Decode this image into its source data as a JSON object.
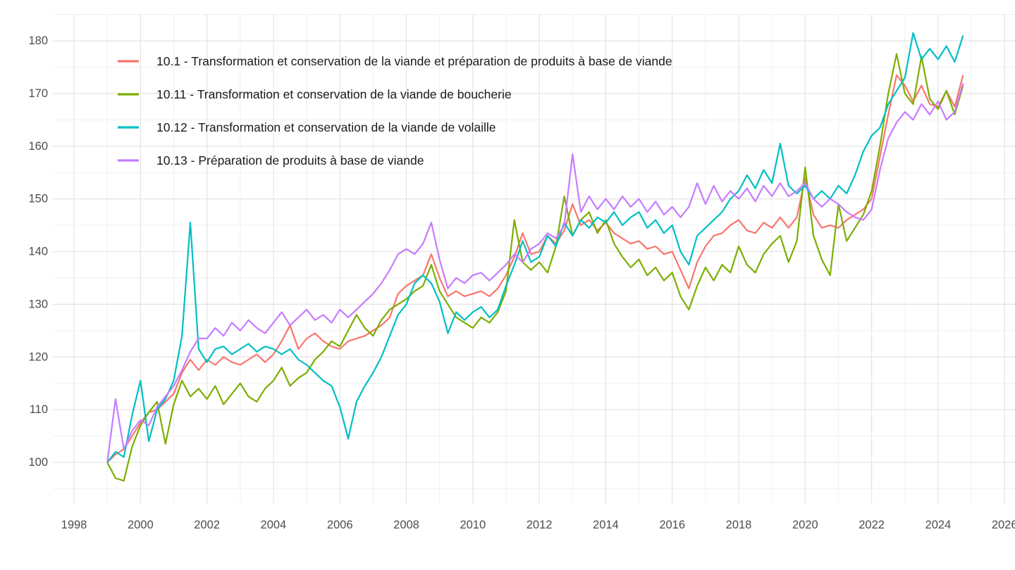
{
  "chart_data": {
    "type": "line",
    "title": "",
    "xlabel": "",
    "ylabel": "",
    "x_ticks": [
      1998,
      2000,
      2002,
      2004,
      2006,
      2008,
      2010,
      2012,
      2014,
      2016,
      2018,
      2020,
      2022,
      2024,
      2026
    ],
    "x_minor_ticks": [
      1999,
      2001,
      2003,
      2005,
      2007,
      2009,
      2011,
      2013,
      2015,
      2017,
      2019,
      2021,
      2023,
      2025
    ],
    "y_ticks": [
      100,
      110,
      120,
      130,
      140,
      150,
      160,
      170,
      180
    ],
    "y_minor_ticks": [
      95,
      105,
      115,
      125,
      135,
      145,
      155,
      165,
      175,
      185
    ],
    "x_domain": [
      1998,
      2026.3
    ],
    "y_domain": [
      92.5,
      183.8
    ],
    "grid": true,
    "legend_position": "top-left-inside",
    "x_start": 1999.0,
    "x_step": 0.25,
    "series": [
      {
        "code": "10.1",
        "name": "10.1 - Transformation et conservation de la viande et préparation de produits à base de viande",
        "color": "#F8766D",
        "values": [
          100,
          101.5,
          102.5,
          105,
          107.5,
          109.5,
          110,
          111.5,
          113,
          117,
          119.5,
          117.5,
          119.5,
          118.5,
          120,
          119,
          118.5,
          119.5,
          120.5,
          119,
          120.5,
          123,
          126,
          121.5,
          123.5,
          124.5,
          123,
          122,
          121.5,
          123,
          123.5,
          124,
          125,
          126,
          127.5,
          132,
          133.5,
          134.5,
          135.5,
          139.5,
          135,
          131.5,
          132.5,
          131.5,
          132,
          132.5,
          131.5,
          133,
          135.5,
          139,
          143.5,
          139.5,
          140,
          143,
          141.5,
          144,
          149,
          145,
          146,
          144,
          145.5,
          143.5,
          142.5,
          141.5,
          142,
          140.5,
          141,
          139.5,
          140,
          136.5,
          133,
          138,
          141,
          143,
          143.5,
          145,
          146,
          144,
          143.5,
          145.5,
          144.5,
          146.5,
          144.5,
          146.5,
          154,
          147,
          144.5,
          145,
          144.5,
          146,
          147,
          148,
          150,
          158,
          166,
          173.5,
          171.5,
          168.5,
          171.5,
          168,
          167.5,
          170.5,
          167.5,
          173.5
        ]
      },
      {
        "code": "10.11",
        "name": "10.11 - Transformation et conservation de la viande de boucherie",
        "color": "#7CAE00",
        "values": [
          100,
          97,
          96.5,
          103,
          107,
          109.5,
          111.5,
          103.5,
          111,
          115.5,
          112.5,
          114,
          112,
          114.5,
          111,
          113,
          115,
          112.5,
          111.5,
          114,
          115.5,
          118,
          114.5,
          116,
          117,
          119.5,
          121,
          123,
          122,
          125,
          128,
          125.5,
          124,
          127,
          129,
          130,
          131,
          132.5,
          133.5,
          137.5,
          132.5,
          130,
          127.5,
          126.5,
          125.5,
          127.5,
          126.5,
          128.5,
          132.5,
          146,
          138,
          136.5,
          138,
          136,
          141,
          150.5,
          143,
          146,
          147.5,
          143.5,
          146,
          141.5,
          139,
          137,
          138.5,
          135.5,
          137,
          134.5,
          136,
          131.5,
          129,
          133.5,
          137,
          134.5,
          137.5,
          136,
          141,
          137.5,
          136,
          139.5,
          141.5,
          143,
          138,
          142,
          156,
          143,
          138.5,
          135.5,
          149,
          142,
          144.5,
          147,
          151.5,
          160,
          170,
          177.5,
          170,
          168,
          177,
          169,
          167,
          170.5,
          166,
          171.5
        ]
      },
      {
        "code": "10.12",
        "name": "10.12 - Transformation et conservation de la viande de volaille",
        "color": "#00BFC4",
        "values": [
          100,
          102,
          101,
          109,
          115.5,
          104,
          110,
          112,
          115.5,
          124,
          145.5,
          121.5,
          119,
          121.5,
          122,
          120.5,
          121.5,
          122.5,
          121,
          122,
          121.5,
          120.5,
          121.5,
          119.5,
          118.5,
          117,
          115.5,
          114.5,
          110.5,
          104.5,
          111.5,
          114.5,
          117,
          120,
          124,
          128,
          130,
          134,
          135.5,
          134,
          130.5,
          124.5,
          128.5,
          127,
          128.5,
          129.5,
          127.5,
          129,
          133.5,
          137.5,
          142,
          138,
          139,
          143,
          141,
          145.5,
          143,
          146,
          144.5,
          146.5,
          145.5,
          147.5,
          145,
          146.5,
          147.5,
          144.5,
          146,
          143.5,
          145,
          140,
          137.5,
          143,
          144.5,
          146,
          147.5,
          150,
          151.5,
          154.5,
          152,
          155.5,
          153,
          160.5,
          152.5,
          151,
          152.5,
          150,
          151.5,
          150,
          152.5,
          151,
          154.5,
          159,
          162,
          163.5,
          168,
          170.5,
          173,
          181.5,
          176.5,
          178.5,
          176.5,
          179,
          176,
          181
        ]
      },
      {
        "code": "10.13",
        "name": "10.13 - Préparation de produits à base de viande",
        "color": "#C77CFF",
        "values": [
          100,
          112,
          102.5,
          106,
          108,
          107,
          110.5,
          112.5,
          114.5,
          117.5,
          121,
          123.5,
          123.5,
          125.5,
          124,
          126.5,
          125,
          127,
          125.5,
          124.5,
          126.5,
          128.5,
          126,
          127.5,
          129,
          127,
          128,
          126.5,
          129,
          127.5,
          129,
          130.5,
          132,
          134,
          136.5,
          139.5,
          140.5,
          139.5,
          141.5,
          145.5,
          138.5,
          133,
          135,
          134,
          135.5,
          136,
          134.5,
          136,
          137.5,
          139.5,
          138,
          140.5,
          141.5,
          143.5,
          142.5,
          145,
          158.5,
          147.5,
          150.5,
          148,
          150,
          148,
          150.5,
          148.5,
          150,
          147.5,
          149.5,
          147,
          148.5,
          146.5,
          148.5,
          153,
          149,
          152.5,
          149.5,
          151.5,
          150,
          152,
          149.5,
          152.5,
          150.5,
          153,
          150.5,
          151.5,
          153,
          150,
          148.5,
          150,
          149,
          147.5,
          146.5,
          146,
          148,
          155.5,
          161.5,
          164.5,
          166.5,
          165,
          168,
          166,
          168.5,
          165,
          166.5,
          172
        ]
      }
    ]
  },
  "style": {
    "background": "#ffffff",
    "grid_major": "#e4e4e4",
    "grid_minor": "#f0f0f0",
    "axis_text_color": "#4d4d4d",
    "legend_text_color": "#1a1a1a",
    "line_width": 2.2,
    "legend_key_width": 3.2
  }
}
